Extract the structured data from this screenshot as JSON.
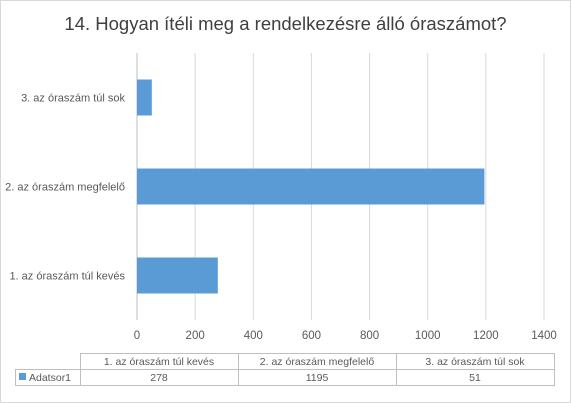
{
  "chart_data": {
    "type": "bar",
    "orientation": "horizontal",
    "title": "14. Hogyan ítéli meg a rendelkezésre álló óraszámot?",
    "categories": [
      "1. az óraszám túl kevés",
      "2. az óraszám megfelelő",
      "3. az óraszám túl sok"
    ],
    "series": [
      {
        "name": "Adatsor1",
        "values": [
          278,
          1195,
          51
        ]
      }
    ],
    "xlim": [
      0,
      1400
    ],
    "xticks": [
      0,
      200,
      400,
      600,
      800,
      1000,
      1200,
      1400
    ],
    "grid": true,
    "bar_color": "#5b9bd5",
    "data_table": true
  }
}
